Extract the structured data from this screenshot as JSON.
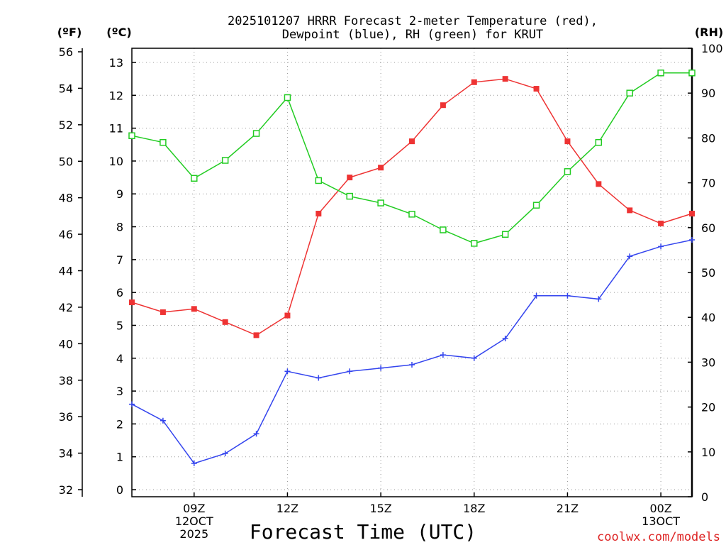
{
  "chart_data": {
    "type": "line",
    "title_lines": [
      "2025101207 HRRR Forecast 2-meter Temperature (red),",
      "Dewpoint (blue), RH (green) for KRUT"
    ],
    "xlabel": "Forecast Time (UTC)",
    "watermark": "coolwx.com/models",
    "hours": [
      7,
      8,
      9,
      10,
      11,
      12,
      13,
      14,
      15,
      16,
      17,
      18,
      19,
      20,
      21,
      22,
      23,
      24,
      25
    ],
    "xlim": [
      7,
      25
    ],
    "x_ticks": [
      {
        "hour": 9,
        "lines": [
          "09Z",
          "12OCT",
          "2025"
        ]
      },
      {
        "hour": 12,
        "lines": [
          "12Z"
        ]
      },
      {
        "hour": 15,
        "lines": [
          "15Z"
        ]
      },
      {
        "hour": 18,
        "lines": [
          "18Z"
        ]
      },
      {
        "hour": 21,
        "lines": [
          "21Z"
        ]
      },
      {
        "hour": 24,
        "lines": [
          "00Z",
          "13OCT"
        ]
      }
    ],
    "axes": {
      "fahrenheit": {
        "label": "(ºF)",
        "ylim": [
          32,
          56
        ],
        "ticks": [
          32,
          34,
          36,
          38,
          40,
          42,
          44,
          46,
          48,
          50,
          52,
          54,
          56
        ]
      },
      "celsius": {
        "label": "(ºC)",
        "ylim": [
          0,
          13
        ],
        "ticks": [
          0,
          1,
          2,
          3,
          4,
          5,
          6,
          7,
          8,
          9,
          10,
          11,
          12,
          13
        ]
      },
      "rh": {
        "label": "(RH)",
        "ylim": [
          0,
          100
        ],
        "ticks": [
          0,
          10,
          20,
          30,
          40,
          50,
          60,
          70,
          80,
          90,
          100
        ]
      }
    },
    "series": [
      {
        "name": "Temperature",
        "axis": "celsius",
        "color": "#ee3333",
        "marker": "filled-square",
        "values": [
          5.7,
          5.4,
          5.5,
          5.1,
          4.7,
          5.3,
          8.4,
          9.5,
          9.8,
          10.6,
          11.7,
          12.4,
          12.5,
          12.2,
          10.6,
          9.3,
          8.5,
          8.1,
          8.4
        ]
      },
      {
        "name": "Dewpoint",
        "axis": "celsius",
        "color": "#3344ee",
        "marker": "plus",
        "values": [
          2.6,
          2.1,
          0.8,
          1.1,
          1.7,
          3.6,
          3.4,
          3.6,
          3.7,
          3.8,
          4.1,
          4.0,
          4.6,
          5.9,
          5.9,
          5.8,
          7.1,
          7.4,
          7.6
        ]
      },
      {
        "name": "RH",
        "axis": "rh",
        "color": "#22cc22",
        "marker": "open-square",
        "values": [
          80.5,
          79,
          71,
          75,
          81,
          89,
          70.5,
          67,
          65.5,
          63,
          59.5,
          56.5,
          58.5,
          65,
          72.5,
          79,
          90,
          94.5,
          94.5
        ]
      }
    ]
  }
}
